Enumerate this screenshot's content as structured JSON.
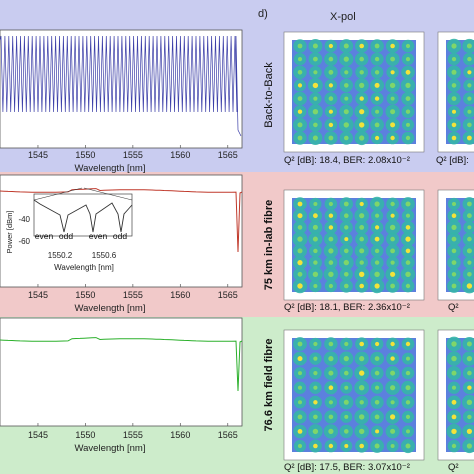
{
  "panel_d_label": "d)",
  "column_header": "X-pol",
  "rows": [
    {
      "name": "Back-to-Back",
      "bg": "#c9ccf0",
      "trace_color": "#3c3fa8",
      "x_ticks": [
        "1545",
        "1550",
        "1555",
        "1560",
        "1565"
      ],
      "x_label": "Wavelength [nm]",
      "q_label": "Q² [dB]: 18.4, BER: 2.08x10⁻²",
      "q_label_right": "Q² [dB]:"
    },
    {
      "name": "75 km in-lab fibre",
      "bg": "#f1c9c9",
      "trace_color": "#c0392b",
      "x_ticks": [
        "1545",
        "1550",
        "1555",
        "1560",
        "1565"
      ],
      "x_label": "Wavelength [nm]",
      "q_label": "Q² [dB]: 18.1, BER: 2.36x10⁻²",
      "q_label_right": "Q²",
      "inset": {
        "y_label": "Power [dBm]",
        "y_ticks": [
          "-40",
          "-60"
        ],
        "x_ticks": [
          "1550.2",
          "1550.6"
        ],
        "x_label": "Wavelength [nm]",
        "channel_labels": [
          "even",
          "odd",
          "even",
          "odd"
        ]
      }
    },
    {
      "name": "76.6 km field fibre",
      "bg": "#cdeccb",
      "trace_color": "#2bb02b",
      "x_ticks": [
        "1545",
        "1550",
        "1555",
        "1560",
        "1565"
      ],
      "x_label": "Wavelength [nm]",
      "q_label": "Q² [dB]: 17.5, BER: 3.07x10⁻²",
      "q_label_right": "Q²"
    }
  ]
}
